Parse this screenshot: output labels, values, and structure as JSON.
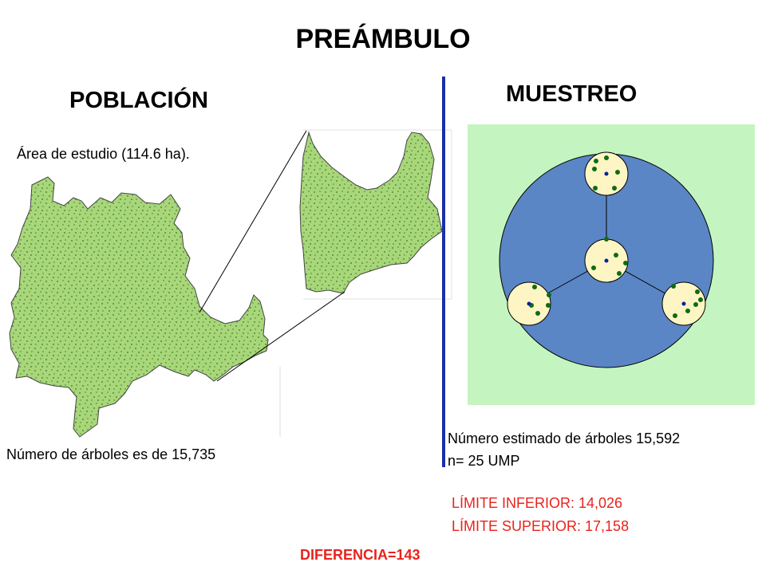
{
  "slide": {
    "title": "PREÁMBULO",
    "poblacion": {
      "heading": "POBLACIÓN",
      "area": "Área de estudio (114.6 ha).",
      "count": "Número de árboles es de 15,735"
    },
    "muestreo": {
      "heading": "MUESTREO",
      "estimate": "Número estimado de árboles 15,592",
      "n": "n= 25 UMP",
      "lower": "LÍMITE INFERIOR:  14,026",
      "upper": "LÍMITE SUPERIOR:  17,158"
    },
    "difference": "DIFERENCIA=143"
  },
  "colors": {
    "map_fill": "#a9d67a",
    "map_dots": "#2e7d1e",
    "sample_bg": "#c4f5c0",
    "plot_circle": "#5b86c5",
    "subplot": "#fdf5c4",
    "tree_dot": "#0e6b14",
    "center_dot": "#0a1f9e",
    "divider": "#1b2fa8",
    "red_text": "#e8231c"
  }
}
